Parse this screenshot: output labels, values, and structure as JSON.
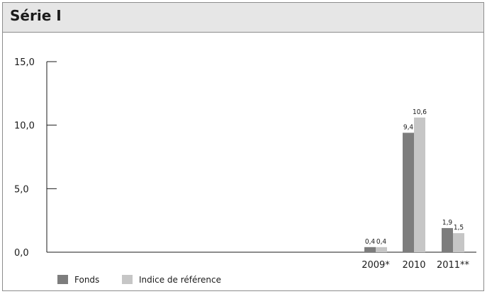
{
  "chart_data": {
    "type": "bar",
    "title": "Série I",
    "categories": [
      "2009*",
      "2010",
      "2011**"
    ],
    "series": [
      {
        "name": "Fonds",
        "values": [
          0.4,
          9.4,
          1.9
        ],
        "labels": [
          "0,4",
          "9,4",
          "1,9"
        ],
        "color": "#7d7d7d"
      },
      {
        "name": "Indice de référence",
        "values": [
          0.4,
          10.6,
          1.5
        ],
        "labels": [
          "0,4",
          "10,6",
          "1,5"
        ],
        "color": "#c6c6c6"
      }
    ],
    "yticks": [
      0,
      5,
      10,
      15
    ],
    "ytick_labels": [
      "0,0",
      "5,0",
      "10,0",
      "15,0"
    ],
    "ylim": [
      0,
      15
    ],
    "xlabel": "",
    "ylabel": "",
    "grid": false,
    "legend_position": "bottom-left"
  }
}
